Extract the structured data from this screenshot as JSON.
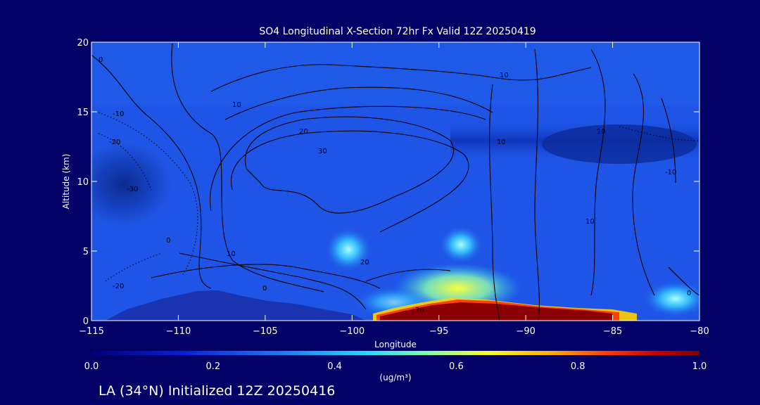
{
  "chart_data": {
    "type": "heatmap",
    "title": "SO4 Longitudinal X-Section 72hr  Fx Valid 12Z 20250419",
    "xlabel": "Longitude",
    "ylabel": "Altitude (km)",
    "xlim": [
      -115,
      -80
    ],
    "ylim": [
      0,
      20
    ],
    "x_ticks": [
      -115,
      -110,
      -105,
      -100,
      -95,
      -90,
      -85,
      -80
    ],
    "x_tick_labels": [
      "-115",
      "-110",
      "-105",
      "-100",
      "-95",
      "-90",
      "-85",
      "-80"
    ],
    "y_ticks": [
      0,
      5,
      10,
      15,
      20
    ],
    "y_tick_labels": [
      "0",
      "5",
      "10",
      "15",
      "20"
    ],
    "colorbar": {
      "min": 0.0,
      "max": 1.0,
      "ticks": [
        "0.0",
        "0.2",
        "0.4",
        "0.6",
        "0.8",
        "1.0"
      ],
      "unit_label": "(ug/m³)"
    },
    "contour_labels": [
      "0",
      "-10",
      "-20",
      "-30",
      "10",
      "20",
      "30"
    ],
    "footer": "LA (34°N) Initialized 12Z 20250416",
    "colors": {
      "background": "#000066",
      "field_base": "#1d4fe0",
      "terrain": "#162fa8",
      "max": "#8b0000"
    }
  }
}
